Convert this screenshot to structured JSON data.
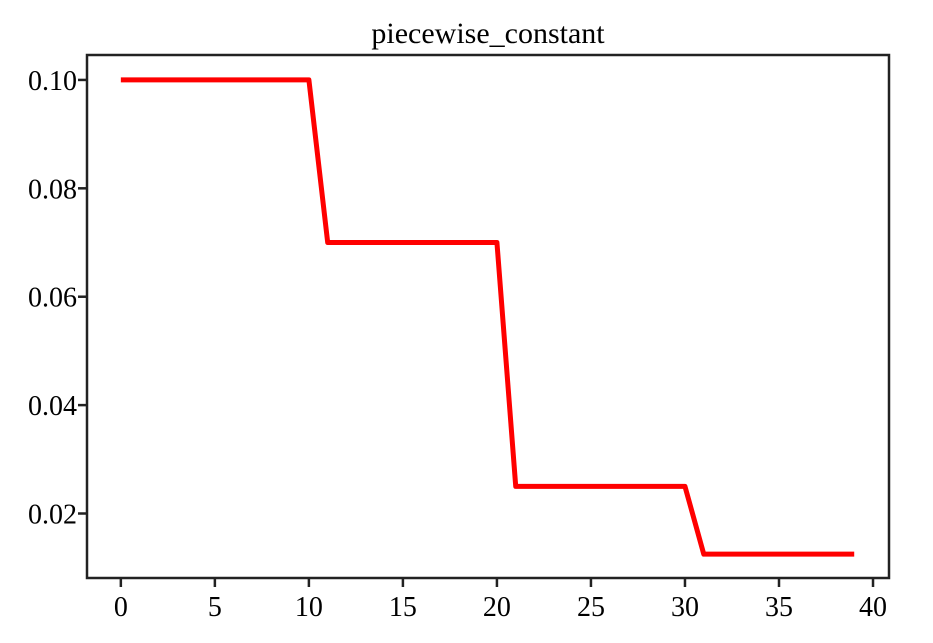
{
  "chart_data": {
    "type": "line",
    "title": "piecewise_constant",
    "xlabel": "",
    "ylabel": "",
    "x": [
      0,
      1,
      2,
      3,
      4,
      5,
      6,
      7,
      8,
      9,
      10,
      11,
      12,
      13,
      14,
      15,
      16,
      17,
      18,
      19,
      20,
      21,
      22,
      23,
      24,
      25,
      26,
      27,
      28,
      29,
      30,
      31,
      32,
      33,
      34,
      35,
      36,
      37,
      38,
      39
    ],
    "series": [
      {
        "values": [
          0.1,
          0.1,
          0.1,
          0.1,
          0.1,
          0.1,
          0.1,
          0.1,
          0.1,
          0.1,
          0.1,
          0.07,
          0.07,
          0.07,
          0.07,
          0.07,
          0.07,
          0.07,
          0.07,
          0.07,
          0.07,
          0.025,
          0.025,
          0.025,
          0.025,
          0.025,
          0.025,
          0.025,
          0.025,
          0.025,
          0.025,
          0.0125,
          0.0125,
          0.0125,
          0.0125,
          0.0125,
          0.0125,
          0.0125,
          0.0125,
          0.0125
        ],
        "color": "#ff0000"
      }
    ],
    "xticks": [
      "0",
      "5",
      "10",
      "15",
      "20",
      "25",
      "30",
      "35",
      "40"
    ],
    "yticks": [
      "0.02",
      "0.04",
      "0.06",
      "0.08",
      "0.10"
    ],
    "xlim": [
      -1.8,
      40.85
    ],
    "ylim": [
      0.0081,
      0.1046
    ],
    "grid": false,
    "legend": "none"
  }
}
